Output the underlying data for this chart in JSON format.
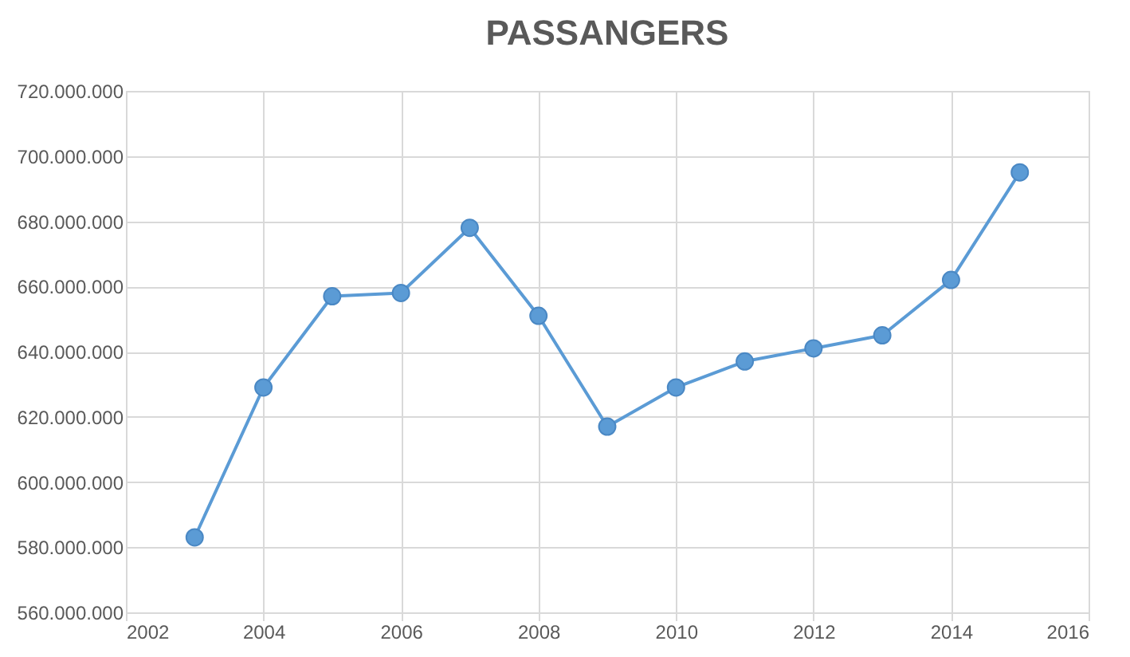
{
  "chart_data": {
    "type": "line",
    "title": "PASSANGERS",
    "x": [
      2003,
      2004,
      2005,
      2006,
      2007,
      2008,
      2009,
      2010,
      2011,
      2012,
      2013,
      2014,
      2015
    ],
    "series": [
      {
        "color": "#5b9bd5",
        "values": [
          583000000,
          629000000,
          657000000,
          658000000,
          678000000,
          651000000,
          617000000,
          629000000,
          637000000,
          641000000,
          645000000,
          662000000,
          695000000
        ]
      }
    ],
    "xlim": [
      2002,
      2016
    ],
    "xticks": [
      2002,
      2004,
      2006,
      2008,
      2010,
      2012,
      2014,
      2016
    ],
    "ylim": [
      560000000,
      720000000
    ],
    "yticks": [
      {
        "value": 560000000,
        "label": "560.000.000"
      },
      {
        "value": 580000000,
        "label": "580.000.000"
      },
      {
        "value": 600000000,
        "label": "600.000.000"
      },
      {
        "value": 620000000,
        "label": "620.000.000"
      },
      {
        "value": 640000000,
        "label": "640.000.000"
      },
      {
        "value": 660000000,
        "label": "660.000.000"
      },
      {
        "value": 680000000,
        "label": "680.000.000"
      },
      {
        "value": 700000000,
        "label": "700.000.000"
      },
      {
        "value": 720000000,
        "label": "720.000.000"
      }
    ],
    "grid": true,
    "marker": "circle",
    "line_style": "solid"
  }
}
